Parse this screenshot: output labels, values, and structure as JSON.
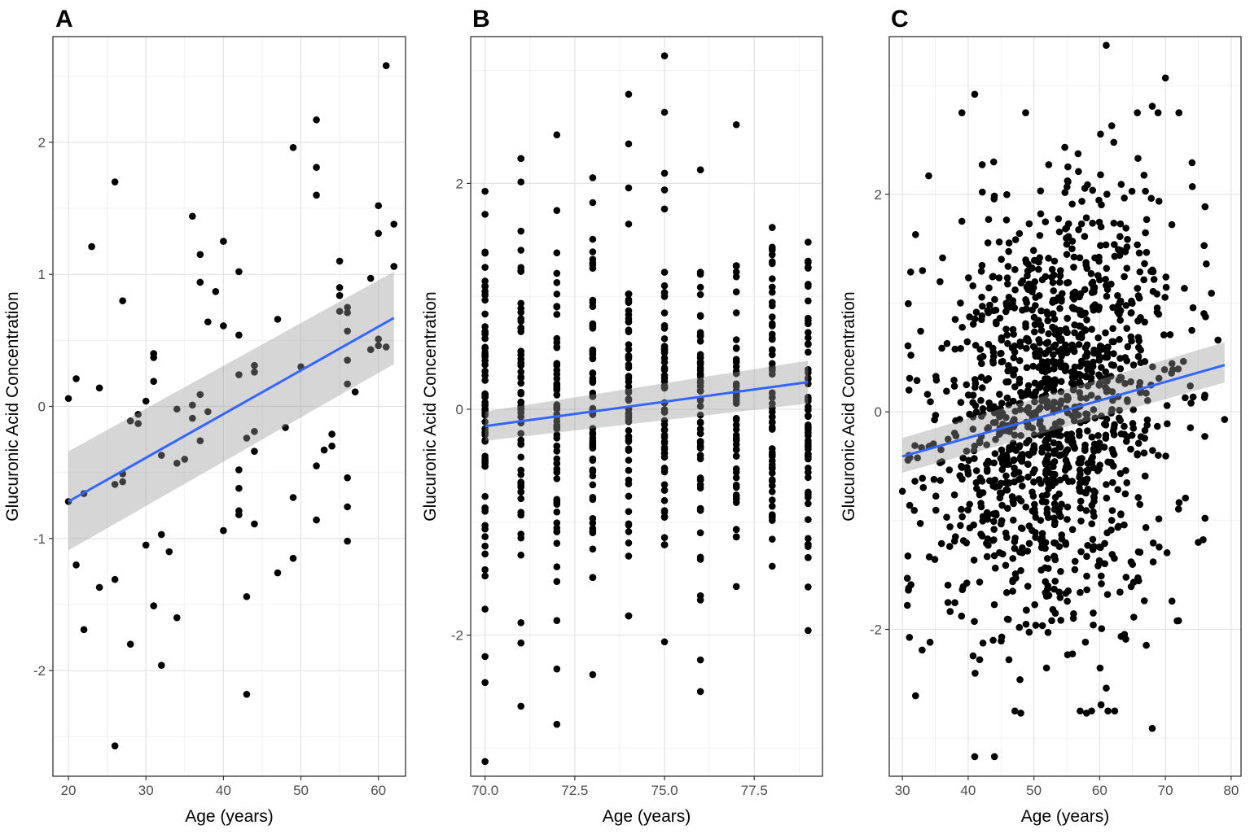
{
  "figure": {
    "panels": [
      "A",
      "B",
      "C"
    ]
  },
  "chart_data": [
    {
      "panel_label": "A",
      "type": "scatter",
      "xlabel": "Age (years)",
      "ylabel": "Glucuronic Acid Concentration",
      "xlim": [
        18,
        63.5
      ],
      "ylim": [
        -2.8,
        2.8
      ],
      "xticks": [
        20,
        30,
        40,
        50,
        60
      ],
      "yticks": [
        -2,
        -1,
        0,
        1,
        2
      ],
      "grid": true,
      "points": [
        [
          20,
          0.06
        ],
        [
          20,
          -0.72
        ],
        [
          21,
          0.21
        ],
        [
          21,
          -1.2
        ],
        [
          22,
          -0.66
        ],
        [
          22,
          -1.69
        ],
        [
          23,
          1.21
        ],
        [
          24,
          0.14
        ],
        [
          24,
          -1.37
        ],
        [
          26,
          1.7
        ],
        [
          26,
          -0.59
        ],
        [
          26,
          -1.31
        ],
        [
          26,
          -2.57
        ],
        [
          27,
          0.8
        ],
        [
          27,
          -0.51
        ],
        [
          27,
          -0.57
        ],
        [
          28,
          -0.11
        ],
        [
          28,
          -1.8
        ],
        [
          29,
          -0.13
        ],
        [
          29,
          -0.06
        ],
        [
          30,
          0.04
        ],
        [
          30,
          -1.05
        ],
        [
          31,
          0.4
        ],
        [
          31,
          0.37
        ],
        [
          31,
          0.19
        ],
        [
          31,
          -1.51
        ],
        [
          32,
          -0.37
        ],
        [
          32,
          -0.97
        ],
        [
          32,
          -1.96
        ],
        [
          33,
          -1.1
        ],
        [
          34,
          -0.02
        ],
        [
          34,
          -0.43
        ],
        [
          34,
          -1.6
        ],
        [
          35,
          -0.4
        ],
        [
          36,
          1.44
        ],
        [
          36,
          0.01
        ],
        [
          36,
          -0.09
        ],
        [
          37,
          1.15
        ],
        [
          37,
          0.94
        ],
        [
          37,
          0.09
        ],
        [
          37,
          -0.26
        ],
        [
          38,
          0.64
        ],
        [
          38,
          -0.04
        ],
        [
          39,
          0.87
        ],
        [
          40,
          1.25
        ],
        [
          40,
          0.61
        ],
        [
          40,
          -0.94
        ],
        [
          42,
          1.02
        ],
        [
          42,
          0.54
        ],
        [
          42,
          0.24
        ],
        [
          42,
          -0.48
        ],
        [
          42,
          -0.62
        ],
        [
          42,
          -0.79
        ],
        [
          42,
          -0.82
        ],
        [
          43,
          -0.24
        ],
        [
          43,
          -1.44
        ],
        [
          43,
          -2.18
        ],
        [
          44,
          0.31
        ],
        [
          44,
          0.26
        ],
        [
          44,
          -0.19
        ],
        [
          44,
          -0.34
        ],
        [
          44,
          -0.89
        ],
        [
          47,
          0.66
        ],
        [
          47,
          -1.26
        ],
        [
          48,
          -0.16
        ],
        [
          49,
          1.96
        ],
        [
          49,
          -0.69
        ],
        [
          49,
          -1.15
        ],
        [
          50,
          0.3
        ],
        [
          52,
          2.17
        ],
        [
          52,
          1.81
        ],
        [
          52,
          1.6
        ],
        [
          52,
          -0.45
        ],
        [
          52,
          -0.86
        ],
        [
          53,
          -0.33
        ],
        [
          54,
          -0.3
        ],
        [
          54,
          -0.21
        ],
        [
          55,
          1.1
        ],
        [
          55,
          0.9
        ],
        [
          55,
          0.84
        ],
        [
          55,
          0.72
        ],
        [
          56,
          0.75
        ],
        [
          56,
          0.71
        ],
        [
          56,
          0.57
        ],
        [
          56,
          0.35
        ],
        [
          56,
          0.17
        ],
        [
          56,
          -0.54
        ],
        [
          56,
          -0.76
        ],
        [
          56,
          -1.02
        ],
        [
          57,
          0.11
        ],
        [
          59,
          0.97
        ],
        [
          59,
          0.43
        ],
        [
          60,
          1.52
        ],
        [
          60,
          1.31
        ],
        [
          60,
          0.51
        ],
        [
          60,
          0.46
        ],
        [
          61,
          2.58
        ],
        [
          61,
          0.45
        ],
        [
          62,
          1.38
        ],
        [
          62,
          1.06
        ]
      ],
      "trend": {
        "x": [
          20,
          62
        ],
        "y": [
          -0.72,
          0.67
        ]
      },
      "ci_band": {
        "x": [
          20,
          62
        ],
        "lower": [
          -1.09,
          0.32
        ],
        "upper": [
          -0.34,
          1.02
        ]
      }
    },
    {
      "panel_label": "B",
      "type": "scatter",
      "xlabel": "Age (years)",
      "ylabel": "Glucuronic Acid Concentration",
      "xlim": [
        69.6,
        79.4
      ],
      "ylim": [
        -3.25,
        3.3
      ],
      "xticks": [
        70.0,
        72.5,
        75.0,
        77.5
      ],
      "xtick_labels": [
        "70.0",
        "72.5",
        "75.0",
        "77.5"
      ],
      "yticks": [
        -2,
        0,
        2
      ],
      "grid": true,
      "columns": [
        {
          "x": 70,
          "max": 1.93,
          "min": -1.77,
          "extra": [
            -2.19,
            -2.42,
            -3.12
          ]
        },
        {
          "x": 71,
          "max": 2.22,
          "min": -2.07,
          "extra": [
            -2.63
          ]
        },
        {
          "x": 72,
          "max": 1.76,
          "min": -2.3,
          "extra": [
            2.43,
            -2.79
          ]
        },
        {
          "x": 73,
          "max": 1.83,
          "min": -1.49,
          "extra": [
            2.05,
            -2.35
          ]
        },
        {
          "x": 74,
          "max": 1.02,
          "min": -1.83,
          "extra": [
            2.79,
            2.35,
            1.96,
            1.64
          ]
        },
        {
          "x": 75,
          "max": 2.09,
          "min": -1.2,
          "extra": [
            3.13,
            2.63,
            -2.06
          ]
        },
        {
          "x": 76,
          "max": 2.12,
          "min": -1.69,
          "extra": [
            -2.22,
            -2.5
          ]
        },
        {
          "x": 77,
          "max": 1.27,
          "min": -1.13,
          "extra": [
            2.52,
            -1.57
          ]
        },
        {
          "x": 78,
          "max": 1.61,
          "min": -1.39,
          "extra": []
        },
        {
          "x": 79,
          "max": 1.48,
          "min": -1.96,
          "extra": []
        }
      ],
      "trend": {
        "x": [
          70,
          79
        ],
        "y": [
          -0.15,
          0.24
        ]
      },
      "ci_band": {
        "x": [
          70,
          79
        ],
        "lower": [
          -0.28,
          0.05
        ],
        "upper": [
          -0.02,
          0.43
        ]
      }
    },
    {
      "panel_label": "C",
      "type": "scatter",
      "xlabel": "Age (years)",
      "ylabel": "Glucuronic Acid Concentration",
      "xlim": [
        28,
        81.5
      ],
      "ylim": [
        -3.35,
        3.45
      ],
      "xticks": [
        30,
        40,
        50,
        60,
        70,
        80
      ],
      "yticks": [
        -2,
        0,
        2
      ],
      "grid": true,
      "highlights": [
        [
          61,
          3.37
        ],
        [
          70,
          3.07
        ],
        [
          41,
          2.92
        ],
        [
          68,
          2.81
        ],
        [
          34,
          2.17
        ],
        [
          32,
          1.63
        ],
        [
          30,
          -0.73
        ],
        [
          31,
          0.2
        ],
        [
          31,
          -0.4
        ],
        [
          32,
          -2.61
        ],
        [
          33,
          -2.19
        ],
        [
          41,
          -3.17
        ],
        [
          44,
          -3.17
        ],
        [
          68,
          -2.91
        ],
        [
          79,
          -0.07
        ],
        [
          78,
          0.66
        ],
        [
          77,
          1.09
        ],
        [
          75,
          -1.2
        ],
        [
          73,
          0.13
        ],
        [
          72,
          -1.92
        ],
        [
          71,
          -1.74
        ],
        [
          61,
          -2.54
        ],
        [
          58,
          -2.77
        ],
        [
          48,
          -2.77
        ]
      ],
      "trend": {
        "x": [
          30,
          79
        ],
        "y": [
          -0.41,
          0.43
        ]
      },
      "ci_band": {
        "x": [
          30,
          79
        ],
        "lower": [
          -0.56,
          0.27
        ],
        "upper": [
          -0.24,
          0.64
        ]
      }
    }
  ]
}
